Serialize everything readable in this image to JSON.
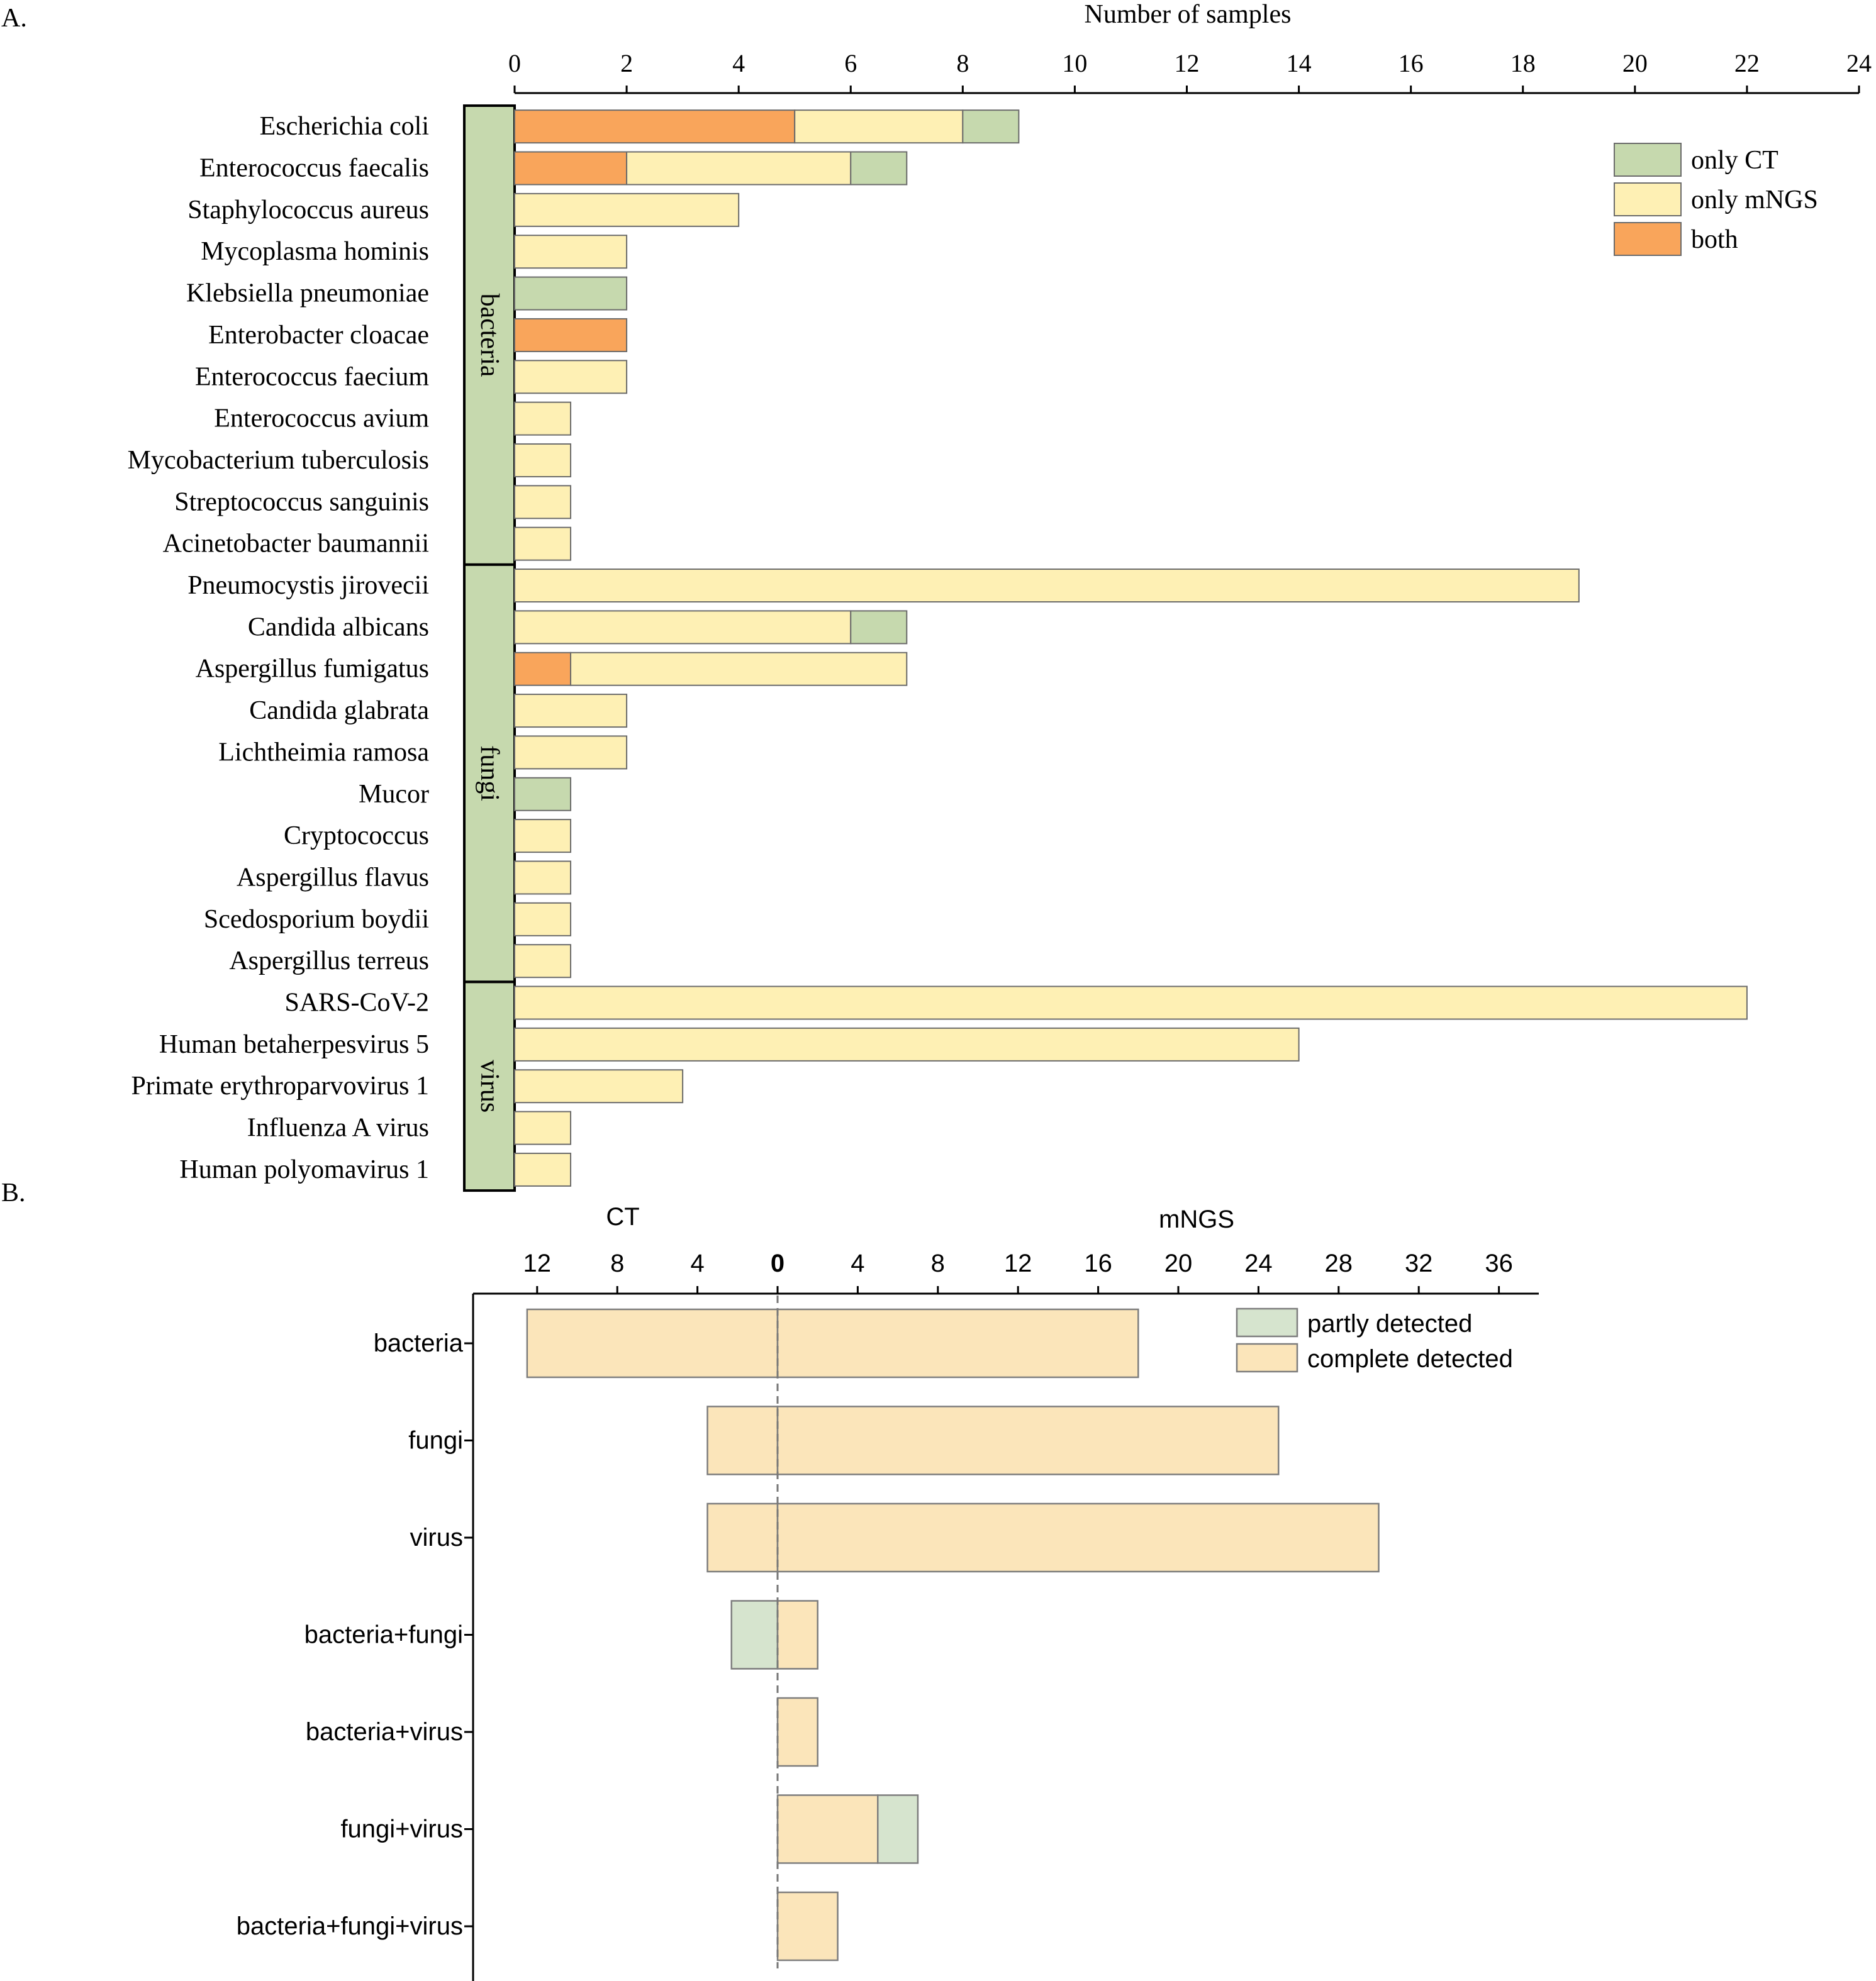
{
  "panel_labels": {
    "a": "A.",
    "b": "B."
  },
  "chart_data": [
    {
      "type": "bar",
      "orientation": "horizontal",
      "stacked": true,
      "title": "Number of samples",
      "xlabel": "Number of samples",
      "xlim": [
        0,
        24
      ],
      "xticks": [
        "0",
        "2",
        "4",
        "6",
        "8",
        "10",
        "12",
        "14",
        "16",
        "18",
        "20",
        "22",
        "24"
      ],
      "categories": [
        "Escherichia coli",
        "Enterococcus faecalis",
        "Staphylococcus aureus",
        "Mycoplasma hominis",
        "Klebsiella pneumoniae",
        "Enterobacter cloacae",
        "Enterococcus faecium",
        "Enterococcus avium",
        "Mycobacterium tuberculosis",
        "Streptococcus sanguinis",
        "Acinetobacter baumannii",
        "Pneumocystis jirovecii",
        "Candida albicans",
        "Aspergillus fumigatus",
        "Candida glabrata",
        "Lichtheimia ramosa",
        "Mucor",
        "Cryptococcus",
        "Aspergillus flavus",
        "Scedosporium boydii",
        "Aspergillus terreus",
        "SARS-CoV-2",
        "Human betaherpesvirus 5",
        "Primate erythroparvovirus 1",
        "Influenza A virus",
        "Human polyomavirus 1"
      ],
      "groups": [
        {
          "name": "bacteria",
          "count": 11
        },
        {
          "name": "fungi",
          "count": 10
        },
        {
          "name": "virus",
          "count": 5
        }
      ],
      "series": [
        {
          "name": "both",
          "color": "#F9A55B",
          "values": [
            5,
            2,
            0,
            0,
            0,
            2,
            0,
            0,
            0,
            0,
            0,
            0,
            0,
            1,
            0,
            0,
            0,
            0,
            0,
            0,
            0,
            0,
            0,
            0,
            0,
            0
          ]
        },
        {
          "name": "only mNGS",
          "color": "#FEF0B4",
          "values": [
            3,
            4,
            4,
            2,
            0,
            0,
            2,
            1,
            1,
            1,
            1,
            19,
            6,
            6,
            2,
            2,
            0,
            1,
            1,
            1,
            1,
            22,
            14,
            3,
            1,
            1
          ]
        },
        {
          "name": "only CT",
          "color": "#C6D9AE",
          "values": [
            1,
            1,
            0,
            0,
            2,
            0,
            0,
            0,
            0,
            0,
            0,
            0,
            1,
            0,
            0,
            0,
            1,
            0,
            0,
            0,
            0,
            0,
            0,
            0,
            0,
            0
          ]
        }
      ],
      "legend": {
        "position": "top-right",
        "entries": [
          {
            "label": "only CT",
            "color": "#C6D9AE"
          },
          {
            "label": "only mNGS",
            "color": "#FEF0B4"
          },
          {
            "label": "both",
            "color": "#F9A55B"
          }
        ]
      },
      "group_color": "#C6D9AE"
    },
    {
      "type": "bar",
      "orientation": "horizontal",
      "diverging": true,
      "left_label": "CT",
      "right_label": "mNGS",
      "xticks_left": [
        "12",
        "8",
        "4"
      ],
      "xticks_right": [
        "0",
        "4",
        "8",
        "12",
        "16",
        "20",
        "24",
        "28",
        "32",
        "36"
      ],
      "categories": [
        "bacteria",
        "fungi",
        "virus",
        "bacteria+fungi",
        "bacteria+virus",
        "fungi+virus",
        "bacteria+fungi+virus"
      ],
      "ct": {
        "complete_detected": [
          12.5,
          3.5,
          3.5,
          0,
          0,
          0,
          0
        ],
        "partly_detected": [
          0,
          0,
          0,
          2.3,
          0,
          0,
          0
        ]
      },
      "mngs": {
        "complete_detected": [
          18,
          25,
          30,
          2,
          2,
          5,
          3
        ],
        "partly_detected": [
          0,
          0,
          0,
          0,
          0,
          2,
          0
        ]
      },
      "legend": {
        "position": "top-right",
        "entries": [
          {
            "label": "partly detected",
            "color": "#D6E4CE"
          },
          {
            "label": "complete detected",
            "color": "#FBE5BA"
          }
        ]
      }
    }
  ]
}
